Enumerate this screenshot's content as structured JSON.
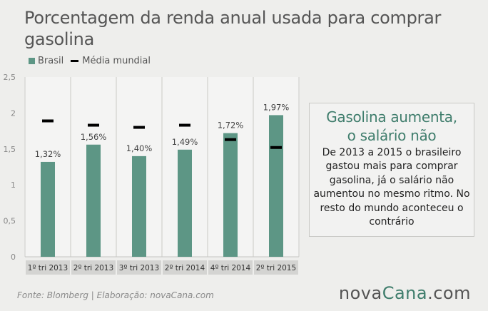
{
  "title": "Porcentagem da renda anual usada para comprar gasolina",
  "legend": {
    "brasil": "Brasil",
    "mundial": "Média mundial"
  },
  "colors": {
    "bar": "#5d9685",
    "world_marker": "#000000",
    "accent": "#3f7d6c",
    "label_bg": "#d4d4d2"
  },
  "chart_data": {
    "type": "bar",
    "categories": [
      "1º tri 2013",
      "2º tri 2013",
      "3º tri 2013",
      "2º tri 2014",
      "4º tri 2014",
      "2º tri 2015"
    ],
    "series": [
      {
        "name": "Brasil",
        "values": [
          1.32,
          1.56,
          1.4,
          1.49,
          1.72,
          1.97
        ]
      },
      {
        "name": "Média mundial",
        "values": [
          1.89,
          1.83,
          1.8,
          1.83,
          1.63,
          1.52
        ]
      }
    ],
    "data_labels": [
      "1,32%",
      "1,56%",
      "1,40%",
      "1,49%",
      "1,72%",
      "1,97%"
    ],
    "y_ticks": [
      "0",
      "0,5",
      "1",
      "1,5",
      "2",
      "2,5"
    ],
    "y_tick_values": [
      0,
      0.5,
      1,
      1.5,
      2,
      2.5
    ],
    "ylim": [
      0,
      2.5
    ],
    "grid": false,
    "legend_position": "top-left"
  },
  "callout": {
    "heading": "Gasolina aumenta, o salário não",
    "body": "De 2013 a 2015 o brasileiro gastou mais para comprar gasolina, já o salário não aumentou no mesmo ritmo. No resto do mundo aconteceu o contrário"
  },
  "footer": {
    "source": "Fonte: Blomberg | Elaboração: novaCana.com"
  },
  "brand": {
    "nova": "nova",
    "cana": "Cana",
    "domain": ".com"
  }
}
